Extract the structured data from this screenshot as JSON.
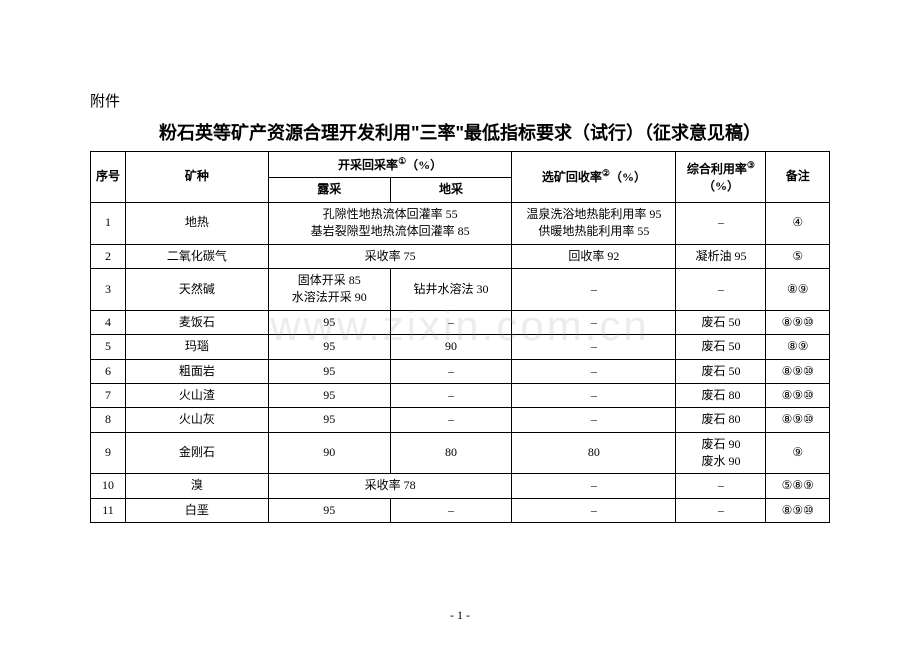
{
  "attachment_label": "附件",
  "title": "粉石英等矿产资源合理开发利用\"三率\"最低指标要求（试行）（征求意见稿）",
  "watermark": "www.zixin.com.cn",
  "page_number": "- 1 -",
  "header": {
    "seq": "序号",
    "mineral": "矿种",
    "mining_rate": "开采回采率",
    "mining_rate_sup": "①",
    "unit_percent": "（%）",
    "surface": "露采",
    "underground": "地采",
    "dressing_rate": "选矿回收率",
    "dressing_rate_sup": "②",
    "util_rate": "综合利用率",
    "util_rate_sup": "③",
    "note": "备注"
  },
  "rows": [
    {
      "seq": "1",
      "mineral": "地热",
      "mining_colspan2_lines": [
        "孔隙性地热流体回灌率 55",
        "基岩裂隙型地热流体回灌率 85"
      ],
      "dressing_lines": [
        "温泉洗浴地热能利用率 95",
        "供暖地热能利用率 55"
      ],
      "util": "–",
      "note": "④"
    },
    {
      "seq": "2",
      "mineral": "二氧化碳气",
      "mining_colspan2": "采收率 75",
      "dressing": "回收率 92",
      "util": "凝析油 95",
      "note": "⑤"
    },
    {
      "seq": "3",
      "mineral": "天然碱",
      "surface_lines": [
        "固体开采 85",
        "水溶法开采 90"
      ],
      "underground": "钻井水溶法 30",
      "dressing": "–",
      "util": "–",
      "note": "⑧⑨"
    },
    {
      "seq": "4",
      "mineral": "麦饭石",
      "surface": "95",
      "underground": "–",
      "dressing": "–",
      "util": "废石 50",
      "note": "⑧⑨⑩"
    },
    {
      "seq": "5",
      "mineral": "玛瑙",
      "surface": "95",
      "underground": "90",
      "dressing": "–",
      "util": "废石 50",
      "note": "⑧⑨"
    },
    {
      "seq": "6",
      "mineral": "粗面岩",
      "surface": "95",
      "underground": "–",
      "dressing": "–",
      "util": "废石 50",
      "note": "⑧⑨⑩"
    },
    {
      "seq": "7",
      "mineral": "火山渣",
      "surface": "95",
      "underground": "–",
      "dressing": "–",
      "util": "废石 80",
      "note": "⑧⑨⑩"
    },
    {
      "seq": "8",
      "mineral": "火山灰",
      "surface": "95",
      "underground": "–",
      "dressing": "–",
      "util": "废石 80",
      "note": "⑧⑨⑩"
    },
    {
      "seq": "9",
      "mineral": "金刚石",
      "surface": "90",
      "underground": "80",
      "dressing": "80",
      "util_lines": [
        "废石 90",
        "废水 90"
      ],
      "note": "⑨"
    },
    {
      "seq": "10",
      "mineral": "溴",
      "mining_colspan2": "采收率 78",
      "dressing": "–",
      "util": "–",
      "note": "⑤⑧⑨"
    },
    {
      "seq": "11",
      "mineral": "白垩",
      "surface": "95",
      "underground": "–",
      "dressing": "–",
      "util": "–",
      "note": "⑧⑨⑩"
    }
  ]
}
